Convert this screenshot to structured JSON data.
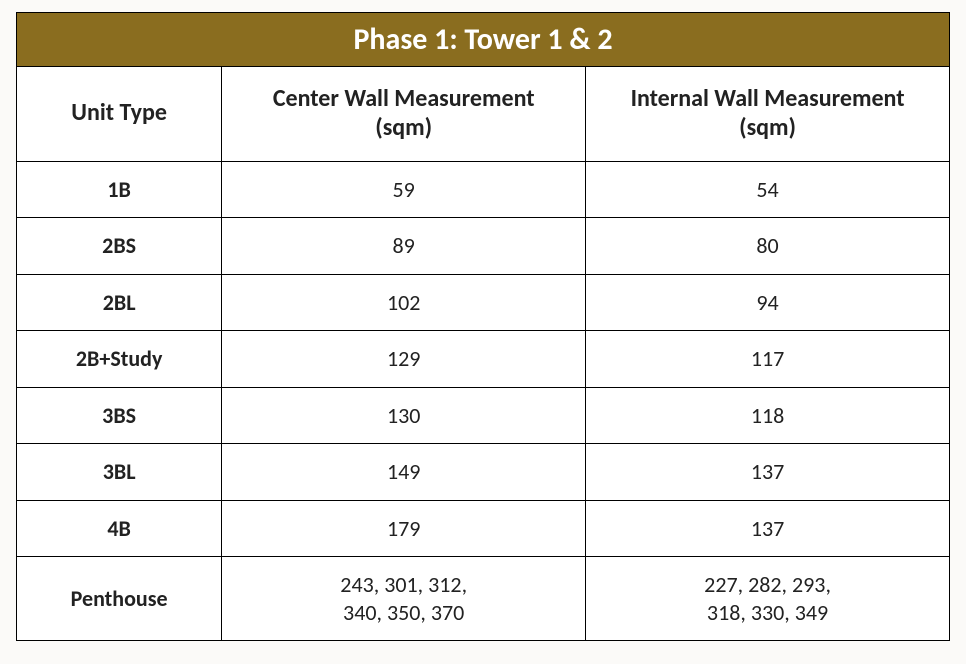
{
  "table": {
    "type": "table",
    "title": "Phase 1: Tower 1 & 2",
    "title_bg": "#8a6d1f",
    "title_fg": "#ffffff",
    "border_color": "#000000",
    "cell_bg": "#ffffff",
    "text_color": "#222222",
    "title_fontsize": 30,
    "header_fontsize": 24,
    "body_fontsize": 22,
    "font_family": "Calibri",
    "column_widths_pct": [
      22,
      39,
      39
    ],
    "columns": [
      {
        "label": "Unit Type",
        "bold": true
      },
      {
        "label": "Center Wall Measurement\n(sqm)",
        "bold": true
      },
      {
        "label": "Internal Wall Measurement\n(sqm)",
        "bold": true
      }
    ],
    "rows": [
      {
        "unit": "1B",
        "center": "59",
        "internal": "54"
      },
      {
        "unit": "2BS",
        "center": "89",
        "internal": "80"
      },
      {
        "unit": "2BL",
        "center": "102",
        "internal": "94"
      },
      {
        "unit": "2B+Study",
        "center": "129",
        "internal": "117"
      },
      {
        "unit": "3BS",
        "center": "130",
        "internal": "118"
      },
      {
        "unit": "3BL",
        "center": "149",
        "internal": "137"
      },
      {
        "unit": "4B",
        "center": "179",
        "internal": "137"
      },
      {
        "unit": "Penthouse",
        "center": "243, 301, 312,\n340, 350, 370",
        "internal": "227, 282, 293,\n318, 330, 349"
      }
    ]
  }
}
